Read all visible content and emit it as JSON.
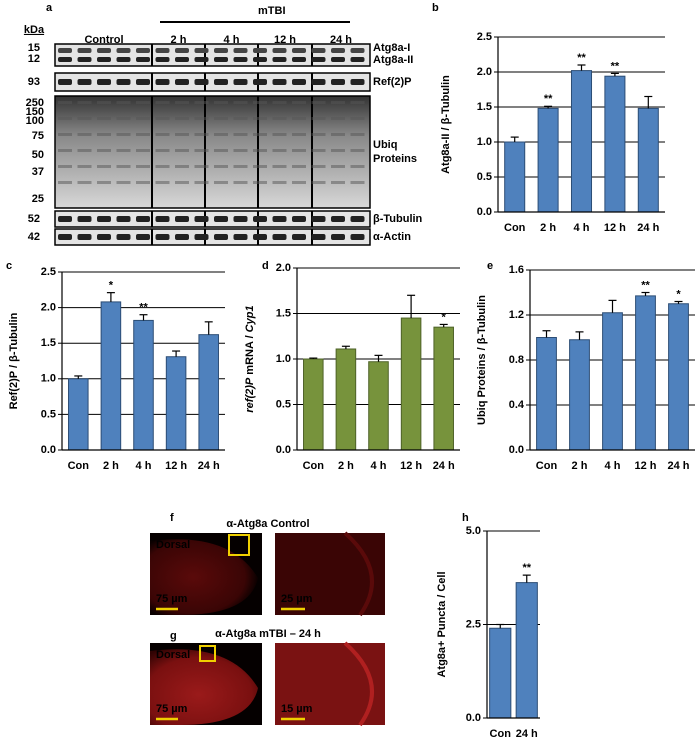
{
  "blot": {
    "panel": "a",
    "kda": "kDa",
    "control": "Control",
    "treatment": "mTBI",
    "timepoints": [
      "2 h",
      "4 h",
      "12 h",
      "24 h"
    ],
    "markers": [
      "15",
      "12",
      "93",
      "250",
      "150",
      "100",
      "75",
      "50",
      "37",
      "25",
      "52",
      "42"
    ],
    "bands": [
      "Atg8a-I",
      "Atg8a-II",
      "Ref(2)P",
      "Ubiq",
      "Proteins",
      "β-Tubulin",
      "α-Actin"
    ]
  },
  "micrographs": [
    {
      "panel": "f",
      "title": "α-Atg8a Control",
      "region": "Dorsal",
      "scale_bars": [
        "75 µm",
        "25 µm"
      ]
    },
    {
      "panel": "g",
      "title": "α-Atg8a mTBI – 24 h",
      "region": "Dorsal",
      "scale_bars": [
        "75 µm",
        "15 µm"
      ]
    }
  ],
  "chart_data": [
    {
      "type": "bar",
      "panel": "b",
      "ylabel": "Atg8a-II / β-Tubulin",
      "color": "#4f81bd",
      "grid": true,
      "categories": [
        "Con",
        "2 h",
        "4 h",
        "12 h",
        "24 h"
      ],
      "values": [
        1.0,
        1.48,
        2.02,
        1.94,
        1.48
      ],
      "errors": [
        0.07,
        0.03,
        0.08,
        0.04,
        0.17
      ],
      "stars": [
        null,
        "**",
        "**",
        "**",
        null
      ],
      "ylim": [
        0,
        2.5
      ],
      "yticks": [
        {
          "value": 0,
          "label": "0.0"
        },
        0.5,
        {
          "value": 1,
          "label": "1.0"
        },
        1.5,
        {
          "value": 2,
          "label": "2.0"
        },
        2.5
      ]
    },
    {
      "type": "bar",
      "panel": "c",
      "ylabel": "Ref(2)P / β-Tubulin",
      "color": "#4f81bd",
      "grid": true,
      "categories": [
        "Con",
        "2 h",
        "4 h",
        "12 h",
        "24 h"
      ],
      "values": [
        1.0,
        2.08,
        1.82,
        1.31,
        1.62
      ],
      "errors": [
        0.04,
        0.13,
        0.08,
        0.08,
        0.18
      ],
      "stars": [
        null,
        "*",
        "**",
        null,
        null
      ],
      "ylim": [
        0,
        2.5
      ],
      "yticks": [
        {
          "value": 0,
          "label": "0.0"
        },
        0.5,
        {
          "value": 1,
          "label": "1.0"
        },
        1.5,
        {
          "value": 2,
          "label": "2.0"
        },
        2.5
      ]
    },
    {
      "type": "bar",
      "panel": "d",
      "ylabel": [
        "ref(2)P",
        " mRNA / ",
        "Cyp1"
      ],
      "ylabel_italic": [
        true,
        false,
        true
      ],
      "color": "#77933c",
      "grid": true,
      "categories": [
        "Con",
        "2 h",
        "4 h",
        "12 h",
        "24 h"
      ],
      "values": [
        1.0,
        1.11,
        0.97,
        1.45,
        1.35
      ],
      "errors": [
        0.01,
        0.03,
        0.07,
        0.25,
        0.03
      ],
      "stars": [
        null,
        null,
        null,
        null,
        "*"
      ],
      "ylim": [
        0,
        2
      ],
      "yticks": [
        {
          "value": 0,
          "label": "0.0"
        },
        0.5,
        {
          "value": 1,
          "label": "1.0"
        },
        1.5,
        {
          "value": 2,
          "label": "2.0"
        }
      ]
    },
    {
      "type": "bar",
      "panel": "e",
      "ylabel": "Ubiq Proteins / β-Tubulin",
      "color": "#4f81bd",
      "grid": true,
      "categories": [
        "Con",
        "2 h",
        "4 h",
        "12 h",
        "24 h"
      ],
      "values": [
        1.0,
        0.98,
        1.22,
        1.37,
        1.3
      ],
      "errors": [
        0.06,
        0.07,
        0.11,
        0.03,
        0.02
      ],
      "stars": [
        null,
        null,
        null,
        "**",
        "*"
      ],
      "ylim": [
        0,
        1.6
      ],
      "yticks": [
        {
          "value": 0,
          "label": "0.0"
        },
        0.4,
        0.8,
        1.2,
        1.6
      ]
    },
    {
      "type": "bar",
      "panel": "h",
      "ylabel": "Atg8a+ Puncta / Cell",
      "color": "#4f81bd",
      "grid": true,
      "categories": [
        "Con",
        "24 h"
      ],
      "values": [
        2.4,
        3.62
      ],
      "errors": [
        0.1,
        0.2
      ],
      "stars": [
        null,
        "**"
      ],
      "ylim": [
        0,
        5
      ],
      "yticks": [
        {
          "value": 0,
          "label": "0.0"
        },
        2.5,
        {
          "value": 5,
          "label": "5.0"
        }
      ]
    }
  ]
}
